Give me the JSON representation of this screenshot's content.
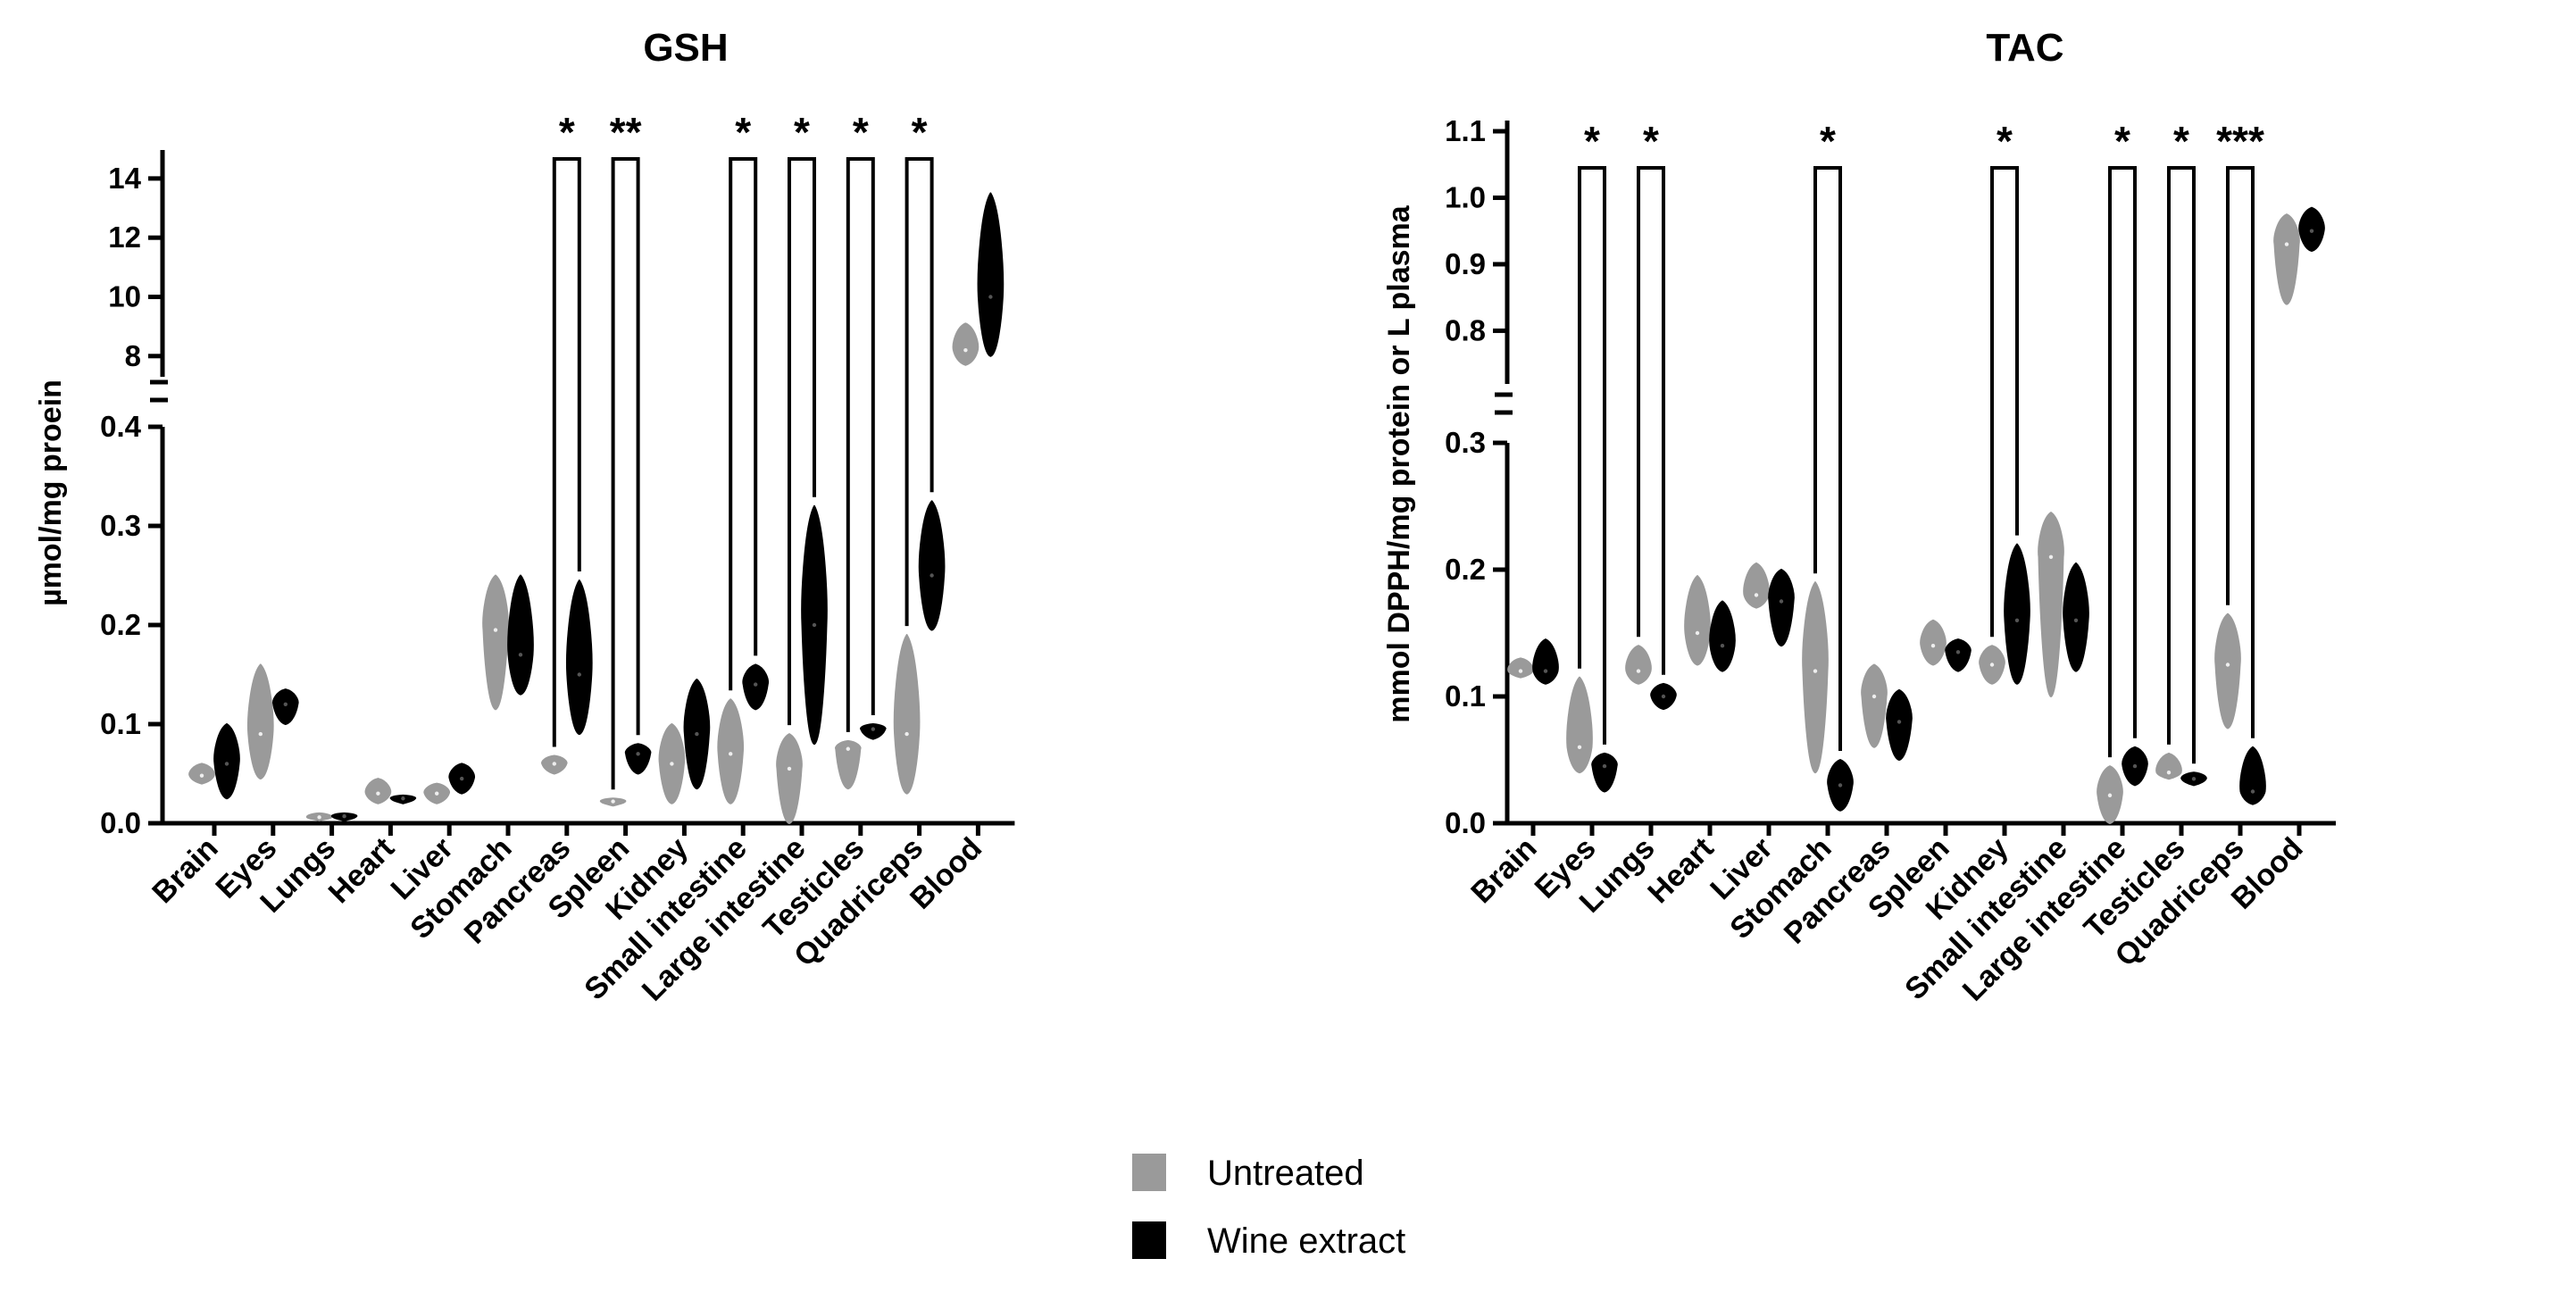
{
  "legend": {
    "items": [
      {
        "label": "Untreated",
        "color": "#9a9a9a"
      },
      {
        "label": "Wine extract",
        "color": "#000000"
      }
    ]
  },
  "chart_data": [
    {
      "type": "violin",
      "title": "GSH",
      "ylabel": "µmol/mg proein",
      "y_axis_break": true,
      "lower_segment": {
        "ylim": [
          0,
          0.4
        ],
        "ticks": [
          "0.0",
          "0.1",
          "0.2",
          "0.3",
          "0.4"
        ]
      },
      "upper_segment": {
        "ylim": [
          7.3,
          14.6
        ],
        "ticks": [
          "8",
          "10",
          "12",
          "14"
        ]
      },
      "categories": [
        "Brain",
        "Eyes",
        "Lungs",
        "Heart",
        "Liver",
        "Stomach",
        "Pancreas",
        "Spleen",
        "Kidney",
        "Small intestine",
        "Large intestine",
        "Testicles",
        "Quadriceps",
        "Blood"
      ],
      "series": [
        {
          "name": "Untreated",
          "color": "#9a9a9a",
          "min": [
            0.04,
            0.045,
            0.003,
            0.02,
            0.02,
            0.115,
            0.05,
            0.018,
            0.02,
            0.02,
            0.0,
            0.035,
            0.03,
            7.7
          ],
          "median": [
            0.048,
            0.09,
            0.006,
            0.03,
            0.03,
            0.195,
            0.06,
            0.022,
            0.06,
            0.07,
            0.055,
            0.075,
            0.09,
            8.2
          ],
          "max": [
            0.06,
            0.16,
            0.01,
            0.045,
            0.04,
            0.25,
            0.068,
            0.025,
            0.1,
            0.125,
            0.09,
            0.083,
            0.19,
            9.1
          ]
        },
        {
          "name": "Wine extract",
          "color": "#000000",
          "min": [
            0.025,
            0.1,
            0.003,
            0.02,
            0.03,
            0.13,
            0.09,
            0.05,
            0.035,
            0.115,
            0.08,
            0.085,
            0.195,
            8.0
          ],
          "median": [
            0.06,
            0.12,
            0.007,
            0.025,
            0.045,
            0.17,
            0.15,
            0.07,
            0.09,
            0.14,
            0.2,
            0.095,
            0.25,
            10.0
          ],
          "max": [
            0.1,
            0.135,
            0.01,
            0.028,
            0.06,
            0.25,
            0.245,
            0.08,
            0.145,
            0.16,
            0.32,
            0.1,
            0.325,
            13.5
          ]
        }
      ],
      "significance": [
        {
          "category": "Pancreas",
          "label": "*"
        },
        {
          "category": "Spleen",
          "label": "**"
        },
        {
          "category": "Small intestine",
          "label": "*"
        },
        {
          "category": "Large intestine",
          "label": "*"
        },
        {
          "category": "Testicles",
          "label": "*"
        },
        {
          "category": "Quadriceps",
          "label": "*"
        }
      ]
    },
    {
      "type": "violin",
      "title": "TAC",
      "ylabel": "mmol DPPH/mg protein or L plasma",
      "y_axis_break": true,
      "lower_segment": {
        "ylim": [
          0,
          0.3
        ],
        "ticks": [
          "0.0",
          "0.1",
          "0.2",
          "0.3"
        ]
      },
      "upper_segment": {
        "ylim": [
          0.72,
          1.1
        ],
        "ticks": [
          "0.8",
          "0.9",
          "1.0",
          "1.1"
        ]
      },
      "categories": [
        "Brain",
        "Eyes",
        "Lungs",
        "Heart",
        "Liver",
        "Stomach",
        "Pancreas",
        "Spleen",
        "Kidney",
        "Small intestine",
        "Large intestine",
        "Testicles",
        "Quadriceps",
        "Blood"
      ],
      "series": [
        {
          "name": "Untreated",
          "color": "#9a9a9a",
          "min": [
            0.115,
            0.04,
            0.11,
            0.125,
            0.17,
            0.04,
            0.06,
            0.125,
            0.11,
            0.1,
            0.0,
            0.035,
            0.075,
            0.84
          ],
          "median": [
            0.12,
            0.06,
            0.12,
            0.15,
            0.18,
            0.12,
            0.1,
            0.14,
            0.125,
            0.21,
            0.022,
            0.04,
            0.125,
            0.93
          ],
          "max": [
            0.13,
            0.115,
            0.14,
            0.195,
            0.205,
            0.19,
            0.125,
            0.16,
            0.14,
            0.245,
            0.045,
            0.055,
            0.165,
            0.975
          ]
        },
        {
          "name": "Wine extract",
          "color": "#000000",
          "min": [
            0.11,
            0.025,
            0.09,
            0.12,
            0.14,
            0.01,
            0.05,
            0.12,
            0.11,
            0.12,
            0.03,
            0.03,
            0.015,
            0.92
          ],
          "median": [
            0.12,
            0.045,
            0.1,
            0.14,
            0.175,
            0.03,
            0.08,
            0.135,
            0.16,
            0.16,
            0.045,
            0.035,
            0.025,
            0.95
          ],
          "max": [
            0.145,
            0.055,
            0.11,
            0.175,
            0.2,
            0.05,
            0.105,
            0.145,
            0.22,
            0.205,
            0.06,
            0.04,
            0.06,
            0.985
          ]
        }
      ],
      "significance": [
        {
          "category": "Eyes",
          "label": "*"
        },
        {
          "category": "Lungs",
          "label": "*"
        },
        {
          "category": "Stomach",
          "label": "*"
        },
        {
          "category": "Kidney",
          "label": "*"
        },
        {
          "category": "Large intestine",
          "label": "*"
        },
        {
          "category": "Testicles",
          "label": "*"
        },
        {
          "category": "Quadriceps",
          "label": "***"
        }
      ]
    }
  ]
}
